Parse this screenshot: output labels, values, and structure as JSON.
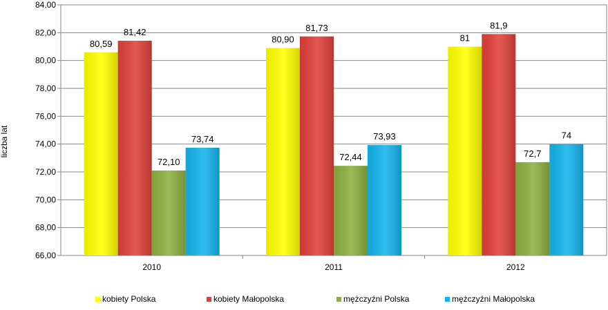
{
  "chart_data": {
    "type": "bar",
    "title": "",
    "xlabel": "",
    "ylabel": "liczba lat",
    "ylim": [
      66,
      84
    ],
    "yticks": [
      "66,00",
      "68,00",
      "70,00",
      "72,00",
      "74,00",
      "76,00",
      "78,00",
      "80,00",
      "82,00",
      "84,00"
    ],
    "categories": [
      "2010",
      "2011",
      "2012"
    ],
    "grid": true,
    "legend_position": "bottom",
    "series": [
      {
        "name": "kobiety Polska",
        "color": "#FFFF00",
        "values": [
          80.59,
          80.9,
          81
        ],
        "labels": [
          "80,59",
          "80,90",
          "81"
        ]
      },
      {
        "name": "kobiety Małopolska",
        "color": "#E0403A",
        "values": [
          81.42,
          81.73,
          81.9
        ],
        "labels": [
          "81,42",
          "81,73",
          "81,9"
        ]
      },
      {
        "name": "mężczyźni Polska",
        "color": "#8CB040",
        "values": [
          72.1,
          72.44,
          72.7
        ],
        "labels": [
          "72,10",
          "72,44",
          "72,7"
        ]
      },
      {
        "name": "mężczyźni Małopolska",
        "color": "#14B4EC",
        "values": [
          73.74,
          73.93,
          74
        ],
        "labels": [
          "73,74",
          "73,93",
          "74"
        ]
      }
    ]
  }
}
